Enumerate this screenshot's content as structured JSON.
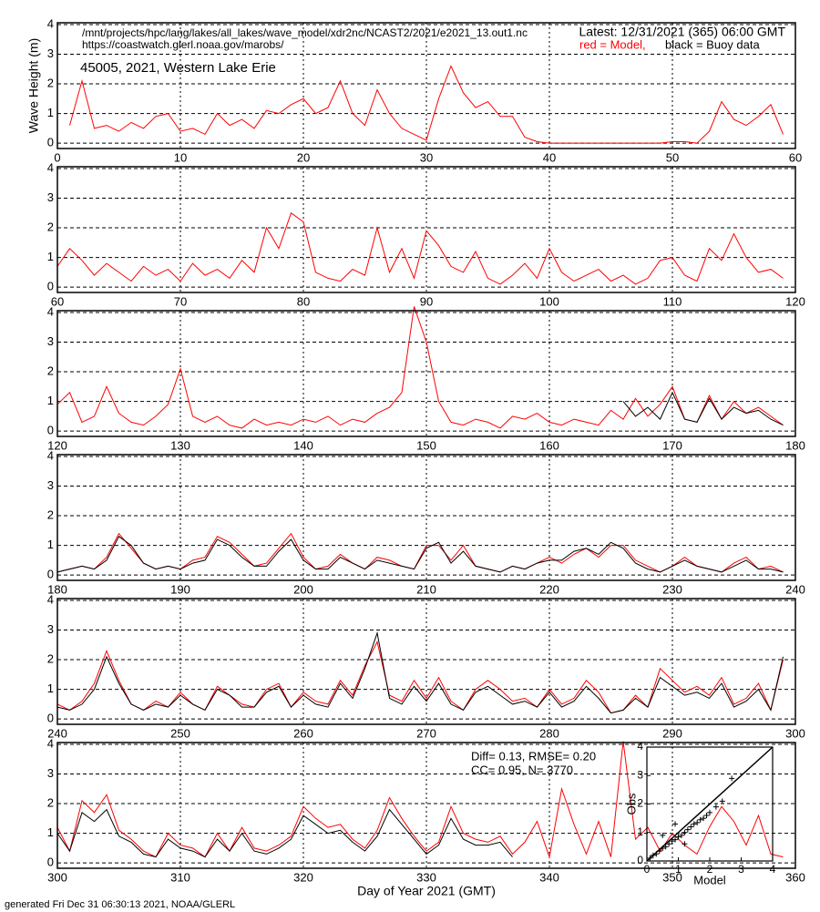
{
  "header": {
    "path": "/mnt/projects/hpc/lang/lakes/all_lakes/wave_model/xdr2nc/NCAST2/2021/e2021_13.out1.nc",
    "url": "https://coastwatch.glerl.noaa.gov/marobs/",
    "latest": "Latest: 12/31/2021 (365) 06:00 GMT",
    "model_legend": "red = Model,",
    "buoy_legend": "black = Buoy data",
    "station": "45005, 2021, Western Lake Erie"
  },
  "footer": "generated Fri Dec 31 06:30:13 2021, NOAA/GLERL",
  "chart_data": [
    {
      "type": "line",
      "ylabel": "Wave Height (m)",
      "xlim": [
        0,
        60
      ],
      "xticks": [
        0,
        10,
        20,
        30,
        40,
        50,
        60
      ],
      "ylim": [
        -0.18,
        4.06
      ],
      "yticks": [
        0,
        1,
        2,
        3,
        4
      ],
      "x": [
        0,
        1,
        2,
        3,
        4,
        5,
        6,
        7,
        8,
        9,
        10,
        11,
        12,
        13,
        14,
        15,
        16,
        17,
        18,
        19,
        20,
        21,
        22,
        23,
        24,
        25,
        26,
        27,
        28,
        29,
        30,
        31,
        32,
        33,
        34,
        35,
        36,
        37,
        38,
        39,
        40,
        41,
        42,
        43,
        44,
        45,
        46,
        47,
        48,
        49,
        50,
        51,
        52,
        53,
        54,
        55,
        56,
        57,
        58,
        59
      ],
      "series": [
        {
          "color": "#ff0000",
          "values": [
            null,
            0.6,
            2.1,
            0.5,
            0.6,
            0.4,
            0.7,
            0.5,
            0.9,
            1.0,
            0.4,
            0.5,
            0.3,
            1.0,
            0.6,
            0.8,
            0.5,
            1.1,
            1.0,
            1.3,
            1.5,
            1.0,
            1.2,
            2.1,
            1.0,
            0.6,
            1.8,
            1.0,
            0.5,
            0.3,
            0.1,
            1.5,
            2.6,
            1.7,
            1.2,
            1.4,
            0.9,
            0.9,
            0.2,
            0.05,
            0.0,
            0.0,
            0.0,
            0.0,
            0.0,
            0.0,
            0.0,
            0.0,
            0.0,
            0.0,
            0.05,
            0.05,
            0.0,
            0.4,
            1.4,
            0.8,
            0.6,
            0.9,
            1.3,
            0.3
          ]
        }
      ]
    },
    {
      "type": "line",
      "xlim": [
        60,
        120
      ],
      "xticks": [
        60,
        70,
        80,
        90,
        100,
        110,
        120
      ],
      "ylim": [
        -0.18,
        4.06
      ],
      "yticks": [
        0,
        1,
        2,
        3,
        4
      ],
      "x": [
        60,
        61,
        62,
        63,
        64,
        65,
        66,
        67,
        68,
        69,
        70,
        71,
        72,
        73,
        74,
        75,
        76,
        77,
        78,
        79,
        80,
        81,
        82,
        83,
        84,
        85,
        86,
        87,
        88,
        89,
        90,
        91,
        92,
        93,
        94,
        95,
        96,
        97,
        98,
        99,
        100,
        101,
        102,
        103,
        104,
        105,
        106,
        107,
        108,
        109,
        110,
        111,
        112,
        113,
        114,
        115,
        116,
        117,
        118,
        119
      ],
      "series": [
        {
          "color": "#ff0000",
          "values": [
            0.7,
            1.3,
            0.9,
            0.4,
            0.8,
            0.5,
            0.2,
            0.7,
            0.4,
            0.6,
            0.2,
            0.8,
            0.4,
            0.6,
            0.3,
            0.9,
            0.5,
            2.0,
            1.3,
            2.5,
            2.2,
            0.5,
            0.3,
            0.2,
            0.6,
            0.4,
            2.0,
            0.5,
            1.3,
            0.3,
            1.9,
            1.4,
            0.7,
            0.5,
            1.2,
            0.3,
            0.1,
            0.4,
            0.8,
            0.3,
            1.3,
            0.5,
            0.2,
            0.4,
            0.6,
            0.2,
            0.4,
            0.1,
            0.3,
            0.9,
            1.0,
            0.4,
            0.2,
            1.3,
            0.9,
            1.8,
            1.0,
            0.5,
            0.6,
            0.3
          ]
        }
      ]
    },
    {
      "type": "line",
      "xlim": [
        120,
        180
      ],
      "xticks": [
        120,
        130,
        140,
        150,
        160,
        170,
        180
      ],
      "ylim": [
        -0.18,
        4.06
      ],
      "yticks": [
        0,
        1,
        2,
        3,
        4
      ],
      "x": [
        120,
        121,
        122,
        123,
        124,
        125,
        126,
        127,
        128,
        129,
        130,
        131,
        132,
        133,
        134,
        135,
        136,
        137,
        138,
        139,
        140,
        141,
        142,
        143,
        144,
        145,
        146,
        147,
        148,
        149,
        150,
        151,
        152,
        153,
        154,
        155,
        156,
        157,
        158,
        159,
        160,
        161,
        162,
        163,
        164,
        165,
        166,
        167,
        168,
        169,
        170,
        171,
        172,
        173,
        174,
        175,
        176,
        177,
        178,
        179
      ],
      "series": [
        {
          "color": "#ff0000",
          "values": [
            0.9,
            1.3,
            0.3,
            0.5,
            1.5,
            0.6,
            0.3,
            0.2,
            0.5,
            0.9,
            2.1,
            0.5,
            0.3,
            0.5,
            0.2,
            0.1,
            0.4,
            0.2,
            0.3,
            0.2,
            0.4,
            0.3,
            0.5,
            0.2,
            0.4,
            0.3,
            0.6,
            0.8,
            1.3,
            4.2,
            3.0,
            1.0,
            0.3,
            0.2,
            0.4,
            0.3,
            0.1,
            0.5,
            0.4,
            0.6,
            0.3,
            0.2,
            0.4,
            0.3,
            0.2,
            0.7,
            0.4,
            1.1,
            0.5,
            0.9,
            1.5,
            0.4,
            0.3,
            1.2,
            0.4,
            1.0,
            0.6,
            0.8,
            0.5,
            0.2
          ]
        },
        {
          "color": "#000000",
          "values": [
            null,
            null,
            null,
            null,
            null,
            null,
            null,
            null,
            null,
            null,
            null,
            null,
            null,
            null,
            null,
            null,
            null,
            null,
            null,
            null,
            null,
            null,
            null,
            null,
            null,
            null,
            null,
            null,
            null,
            null,
            null,
            null,
            null,
            null,
            null,
            null,
            null,
            null,
            null,
            null,
            null,
            null,
            null,
            null,
            null,
            null,
            1.0,
            0.5,
            0.8,
            0.4,
            1.3,
            0.4,
            0.3,
            1.1,
            0.4,
            0.8,
            0.6,
            0.7,
            0.4,
            0.2
          ]
        }
      ]
    },
    {
      "type": "line",
      "xlim": [
        180,
        240
      ],
      "xticks": [
        180,
        190,
        200,
        210,
        220,
        230,
        240
      ],
      "ylim": [
        -0.18,
        4.06
      ],
      "yticks": [
        0,
        1,
        2,
        3,
        4
      ],
      "x": [
        180,
        181,
        182,
        183,
        184,
        185,
        186,
        187,
        188,
        189,
        190,
        191,
        192,
        193,
        194,
        195,
        196,
        197,
        198,
        199,
        200,
        201,
        202,
        203,
        204,
        205,
        206,
        207,
        208,
        209,
        210,
        211,
        212,
        213,
        214,
        215,
        216,
        217,
        218,
        219,
        220,
        221,
        222,
        223,
        224,
        225,
        226,
        227,
        228,
        229,
        230,
        231,
        232,
        233,
        234,
        235,
        236,
        237,
        238,
        239
      ],
      "series": [
        {
          "color": "#ff0000",
          "values": [
            0.1,
            0.2,
            0.3,
            0.2,
            0.6,
            1.4,
            0.9,
            0.4,
            0.2,
            0.3,
            0.2,
            0.5,
            0.6,
            1.3,
            1.1,
            0.7,
            0.3,
            0.4,
            0.9,
            1.4,
            0.6,
            0.2,
            0.3,
            0.7,
            0.4,
            0.2,
            0.6,
            0.5,
            0.3,
            0.2,
            1.0,
            1.0,
            0.5,
            1.0,
            0.3,
            0.2,
            0.1,
            0.3,
            0.2,
            0.4,
            0.6,
            0.4,
            0.7,
            0.9,
            0.6,
            1.0,
            1.0,
            0.5,
            0.3,
            0.1,
            0.3,
            0.6,
            0.3,
            0.2,
            0.1,
            0.4,
            0.6,
            0.2,
            0.3,
            0.1
          ]
        },
        {
          "color": "#000000",
          "values": [
            0.1,
            0.2,
            0.3,
            0.2,
            0.5,
            1.3,
            1.0,
            0.4,
            0.2,
            0.3,
            0.2,
            0.4,
            0.5,
            1.2,
            1.0,
            0.6,
            0.3,
            0.3,
            0.8,
            1.2,
            0.5,
            0.2,
            0.2,
            0.6,
            0.4,
            0.2,
            0.5,
            0.4,
            0.3,
            0.2,
            0.9,
            1.1,
            0.4,
            0.8,
            0.3,
            0.2,
            0.1,
            0.3,
            0.2,
            0.4,
            0.5,
            0.5,
            0.8,
            0.9,
            0.7,
            1.1,
            0.9,
            0.4,
            0.2,
            0.1,
            0.3,
            0.5,
            0.3,
            0.2,
            0.1,
            0.3,
            0.5,
            0.2,
            0.2,
            0.1
          ]
        }
      ]
    },
    {
      "type": "line",
      "xlim": [
        240,
        300
      ],
      "xticks": [
        240,
        250,
        260,
        270,
        280,
        290,
        300
      ],
      "ylim": [
        -0.18,
        4.06
      ],
      "yticks": [
        0,
        1,
        2,
        3,
        4
      ],
      "x": [
        240,
        241,
        242,
        243,
        244,
        245,
        246,
        247,
        248,
        249,
        250,
        251,
        252,
        253,
        254,
        255,
        256,
        257,
        258,
        259,
        260,
        261,
        262,
        263,
        264,
        265,
        266,
        267,
        268,
        269,
        270,
        271,
        272,
        273,
        274,
        275,
        276,
        277,
        278,
        279,
        280,
        281,
        282,
        283,
        284,
        285,
        286,
        287,
        288,
        289,
        290,
        291,
        292,
        293,
        294,
        295,
        296,
        297,
        298,
        299
      ],
      "series": [
        {
          "color": "#ff0000",
          "values": [
            0.5,
            0.3,
            0.6,
            1.2,
            2.3,
            1.3,
            0.5,
            0.3,
            0.6,
            0.4,
            0.9,
            0.5,
            0.3,
            1.1,
            0.8,
            0.5,
            0.4,
            1.0,
            1.2,
            0.4,
            0.9,
            0.6,
            0.5,
            1.3,
            0.8,
            1.8,
            2.6,
            0.8,
            0.6,
            1.3,
            0.7,
            1.4,
            0.6,
            0.3,
            1.0,
            1.3,
            1.0,
            0.6,
            0.7,
            0.4,
            1.0,
            0.5,
            0.7,
            1.3,
            0.9,
            0.2,
            0.3,
            0.8,
            0.4,
            1.7,
            1.3,
            0.9,
            1.1,
            0.8,
            1.4,
            0.5,
            0.7,
            1.2,
            0.3,
            2.0
          ]
        },
        {
          "color": "#000000",
          "values": [
            0.4,
            0.3,
            0.5,
            1.0,
            2.1,
            1.2,
            0.5,
            0.3,
            0.5,
            0.4,
            0.8,
            0.5,
            0.3,
            1.0,
            0.8,
            0.4,
            0.4,
            0.9,
            1.1,
            0.4,
            0.8,
            0.5,
            0.4,
            1.2,
            0.7,
            1.7,
            2.9,
            0.7,
            0.5,
            1.1,
            0.6,
            1.2,
            0.5,
            0.3,
            0.9,
            1.1,
            0.8,
            0.5,
            0.6,
            0.4,
            0.9,
            0.4,
            0.6,
            1.1,
            0.7,
            0.2,
            0.3,
            0.7,
            0.4,
            1.4,
            1.1,
            0.8,
            0.9,
            0.7,
            1.2,
            0.4,
            0.6,
            1.0,
            0.3,
            2.1
          ]
        }
      ]
    },
    {
      "type": "line",
      "xlabel": "Day of Year 2021 (GMT)",
      "annotations": [
        "Diff= 0.13,  RMSE= 0.20",
        "CC= 0.95,  N= 3770"
      ],
      "xlim": [
        300,
        360
      ],
      "xticks": [
        300,
        310,
        320,
        330,
        340,
        350,
        360
      ],
      "ylim": [
        -0.18,
        4.06
      ],
      "yticks": [
        0,
        1,
        2,
        3,
        4
      ],
      "x": [
        300,
        301,
        302,
        303,
        304,
        305,
        306,
        307,
        308,
        309,
        310,
        311,
        312,
        313,
        314,
        315,
        316,
        317,
        318,
        319,
        320,
        321,
        322,
        323,
        324,
        325,
        326,
        327,
        328,
        329,
        330,
        331,
        332,
        333,
        334,
        335,
        336,
        337,
        338,
        339,
        340,
        341,
        342,
        343,
        344,
        345,
        346,
        347,
        348,
        349,
        350,
        351,
        352,
        353,
        354,
        355,
        356,
        357,
        358,
        359
      ],
      "series": [
        {
          "color": "#ff0000",
          "values": [
            1.2,
            0.4,
            2.1,
            1.7,
            2.3,
            1.1,
            0.8,
            0.4,
            0.2,
            1.0,
            0.6,
            0.5,
            0.2,
            1.0,
            0.4,
            1.2,
            0.5,
            0.4,
            0.6,
            0.9,
            1.9,
            1.5,
            1.2,
            1.3,
            0.8,
            0.5,
            1.1,
            2.2,
            1.5,
            0.9,
            0.4,
            0.7,
            1.9,
            1.0,
            0.8,
            0.7,
            0.9,
            0.3,
            0.7,
            1.4,
            0.2,
            2.5,
            1.3,
            0.3,
            1.4,
            0.2,
            4.1,
            0.8,
            1.2,
            0.4,
            1.0,
            0.6,
            0.3,
            1.2,
            1.9,
            1.4,
            0.6,
            1.6,
            0.3,
            0.2
          ]
        },
        {
          "color": "#000000",
          "values": [
            1.0,
            0.4,
            1.7,
            1.4,
            1.8,
            0.9,
            0.7,
            0.3,
            0.2,
            0.8,
            0.5,
            0.4,
            0.2,
            0.8,
            0.4,
            1.0,
            0.4,
            0.3,
            0.5,
            0.8,
            1.6,
            1.3,
            1.0,
            1.1,
            0.7,
            0.4,
            0.9,
            1.8,
            1.3,
            0.8,
            0.3,
            0.6,
            1.5,
            0.8,
            0.6,
            0.6,
            0.7,
            0.2,
            null,
            null,
            null,
            null,
            null,
            null,
            null,
            null,
            null,
            null,
            null,
            null,
            null,
            null,
            null,
            null,
            null,
            null,
            null,
            null,
            null,
            null
          ]
        }
      ]
    },
    {
      "type": "scatter",
      "xlabel": "Model",
      "ylabel": "Obs",
      "xlim": [
        0,
        4
      ],
      "ylim": [
        0,
        4
      ],
      "xticks": [
        0,
        1,
        2,
        3,
        4
      ],
      "yticks": [
        0,
        1,
        2,
        3,
        4
      ],
      "color": "#000000",
      "x": [
        0.1,
        0.2,
        0.3,
        0.4,
        0.5,
        0.6,
        0.7,
        0.8,
        0.9,
        1.0,
        1.1,
        1.2,
        1.3,
        1.4,
        1.5,
        1.6,
        1.7,
        1.8,
        1.9,
        2.0,
        2.2,
        2.4,
        2.7,
        0.5,
        0.9,
        1.2
      ],
      "y": [
        0.1,
        0.2,
        0.25,
        0.35,
        0.45,
        0.5,
        0.6,
        0.7,
        0.75,
        0.85,
        0.9,
        1.0,
        1.1,
        1.2,
        1.3,
        1.35,
        1.45,
        1.5,
        1.6,
        1.7,
        1.9,
        2.1,
        2.9,
        0.9,
        1.3,
        0.6
      ]
    }
  ]
}
